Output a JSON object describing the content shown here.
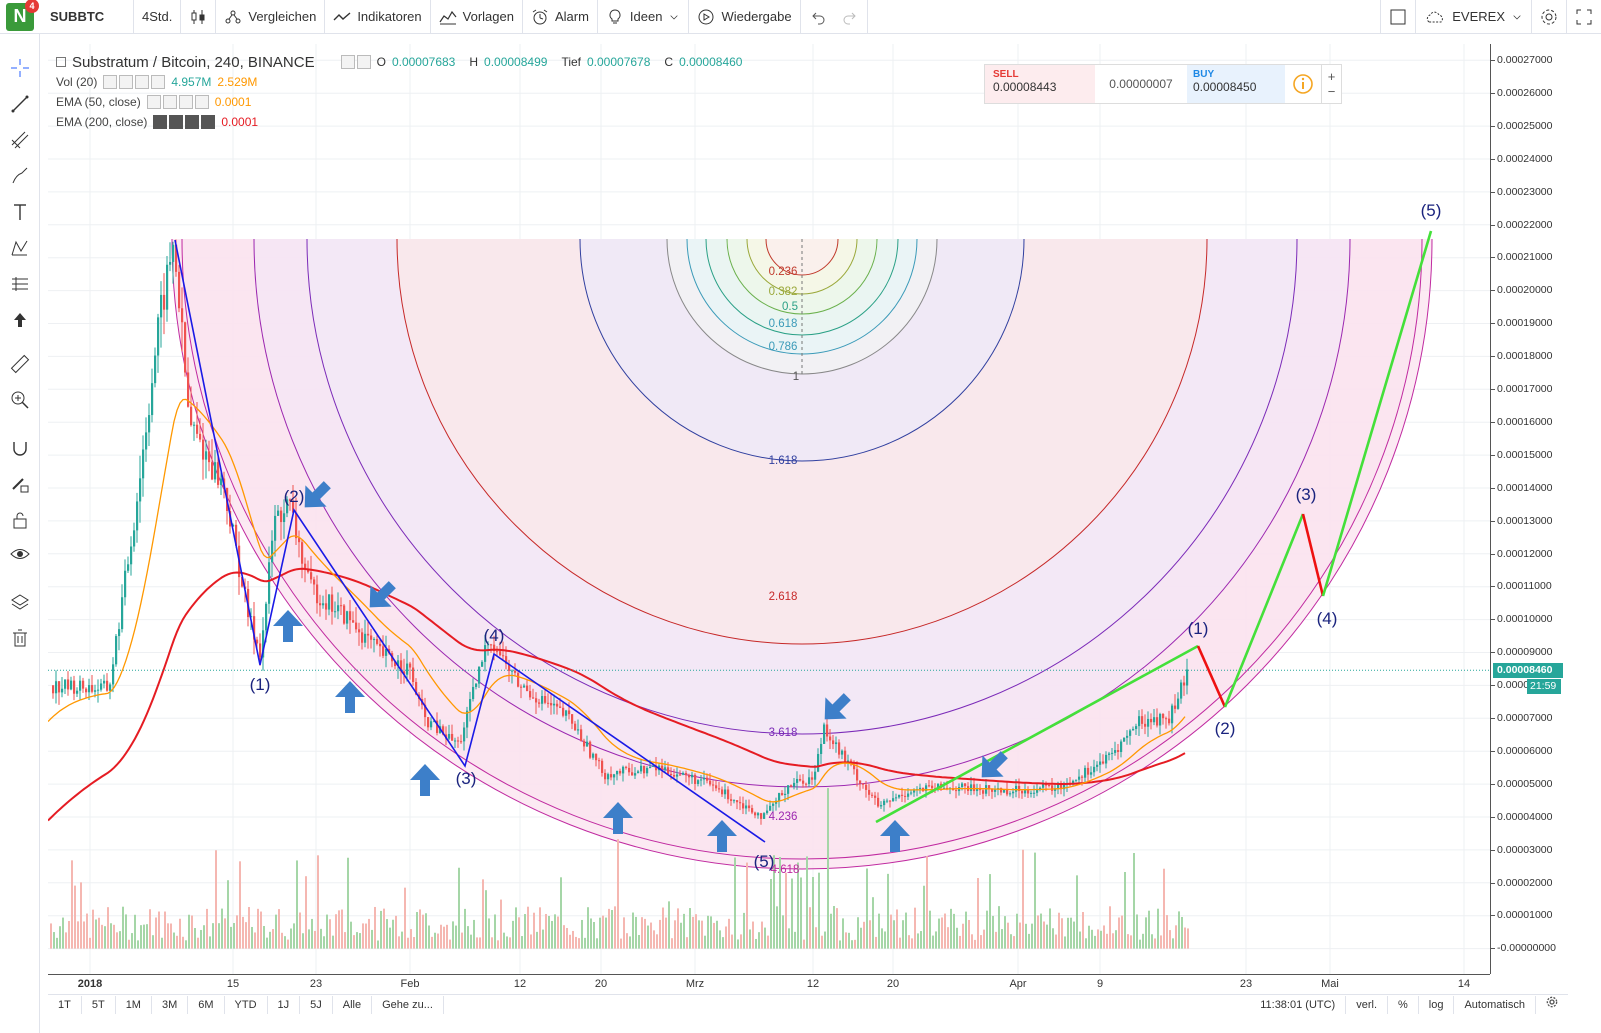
{
  "toolbar": {
    "logo_letter": "N",
    "notifications": "4",
    "symbol": "SUBBTC",
    "interval": "4Std.",
    "compare": "Vergleichen",
    "indicators": "Indikatoren",
    "templates": "Vorlagen",
    "alarm": "Alarm",
    "ideas": "Ideen",
    "replay": "Wiedergabe",
    "broker": "EVEREX"
  },
  "legend": {
    "title": "Substratum / Bitcoin, 240, BINANCE",
    "o_label": "O",
    "o": "0.00007683",
    "h_label": "H",
    "h": "0.00008499",
    "l_label": "Tief",
    "l": "0.00007678",
    "c_label": "C",
    "c": "0.00008460",
    "vol_name": "Vol (20)",
    "vol1": "4.957M",
    "vol2": "2.529M",
    "ema50_name": "EMA (50, close)",
    "ema50_val": "0.0001",
    "ema200_name": "EMA (200, close)",
    "ema200_val": "0.0001"
  },
  "trade": {
    "sell_label": "SELL",
    "sell_price": "0.00008443",
    "spread": "0.00000007",
    "buy_label": "BUY",
    "buy_price": "0.00008450"
  },
  "price_axis": {
    "labels": [
      "0.00027000",
      "0.00026000",
      "0.00025000",
      "0.00024000",
      "0.00023000",
      "0.00022000",
      "0.00021000",
      "0.00020000",
      "0.00019000",
      "0.00018000",
      "0.00017000",
      "0.00016000",
      "0.00015000",
      "0.00014000",
      "0.00013000",
      "0.00012000",
      "0.00011000",
      "0.00010000",
      "0.00009000",
      "0.00008000",
      "0.00007000",
      "0.00006000",
      "0.00005000",
      "0.00004000",
      "0.00003000",
      "0.00002000",
      "0.00001000",
      "-0.00000000"
    ],
    "current_price": "0.00008460",
    "countdown": "21:59",
    "current_price_value": 8.46e-05
  },
  "time_axis": {
    "labels": [
      "2018",
      "15",
      "23",
      "Feb",
      "12",
      "20",
      "Mrz",
      "12",
      "20",
      "Apr",
      "9",
      "23",
      "Mai",
      "14"
    ]
  },
  "bottom": {
    "ranges": [
      "1T",
      "5T",
      "1M",
      "3M",
      "6M",
      "YTD",
      "1J",
      "5J",
      "Alle"
    ],
    "goto": "Gehe zu...",
    "clock": "11:38:01 (UTC)",
    "adj": "verl.",
    "pct": "%",
    "log": "log",
    "auto": "Automatisch"
  },
  "fib_labels": {
    "inner": [
      "0.236",
      "0.382",
      "0.5",
      "0.618",
      "0.786",
      "1"
    ],
    "outer": [
      "1.618",
      "2.618",
      "3.618",
      "4.236",
      "4.618"
    ]
  },
  "wave_labels": {
    "past": [
      "(1)",
      "(2)",
      "(3)",
      "(4)",
      "(5)"
    ],
    "future": [
      "(1)",
      "(2)",
      "(3)",
      "(4)",
      "(5)"
    ]
  },
  "colors": {
    "up": "#26a69a",
    "down": "#ef5350",
    "ema50": "#ff9800",
    "ema200": "#e51c23",
    "wave_blue": "#1a1ae6",
    "projection_green": "#44e03a",
    "projection_red": "#ee1111",
    "arrow_blue": "#3d7fc9"
  }
}
